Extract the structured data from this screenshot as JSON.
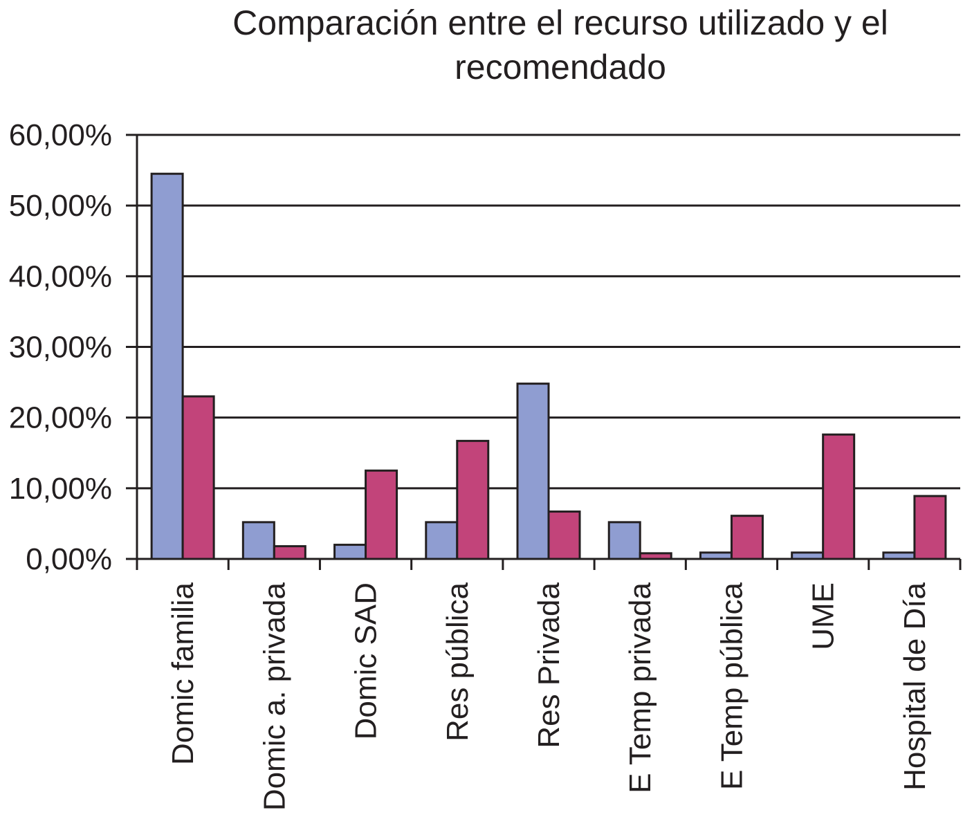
{
  "chart_data": {
    "type": "bar",
    "title_lines": [
      "Comparación entre el recurso utilizado y el",
      "recomendado"
    ],
    "categories": [
      "Domic familia",
      "Domic a. privada",
      "Domic SAD",
      "Res pública",
      "Res Privada",
      "E Temp privada",
      "E Temp pública",
      "UME",
      "Hospital de Día"
    ],
    "series": [
      {
        "values": [
          54.5,
          5.2,
          2.0,
          5.2,
          24.8,
          5.2,
          0.9,
          0.9,
          0.9
        ],
        "color": "#8f9dd1"
      },
      {
        "values": [
          23.0,
          1.8,
          12.5,
          16.7,
          6.7,
          0.8,
          6.1,
          17.6,
          8.9
        ],
        "color": "#c2447a"
      }
    ],
    "yticks": [
      "0,00%",
      "10,00%",
      "20,00%",
      "30,00%",
      "40,00%",
      "50,00%",
      "60,00%"
    ],
    "ylim": [
      0,
      60
    ],
    "grid": true,
    "legend": "none"
  }
}
